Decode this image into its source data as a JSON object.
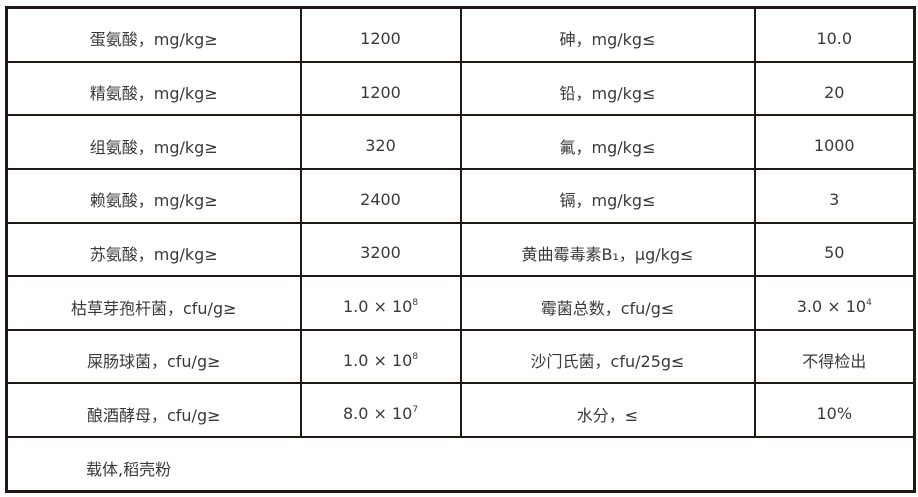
{
  "rows": [
    {
      "name1": "蛋氨酸，mg/kg≥",
      "val1": {
        "text": "1200"
      },
      "name2": "砷，mg/kg≤",
      "val2": {
        "text": "10.0"
      }
    },
    {
      "name1": "精氨酸，mg/kg≥",
      "val1": {
        "text": "1200"
      },
      "name2": "铅，mg/kg≤",
      "val2": {
        "text": "20"
      }
    },
    {
      "name1": "组氨酸，mg/kg≥",
      "val1": {
        "text": "320"
      },
      "name2": "氟，mg/kg≤",
      "val2": {
        "text": "1000"
      }
    },
    {
      "name1": "赖氨酸，mg/kg≥",
      "val1": {
        "text": "2400"
      },
      "name2": "镉，mg/kg≤",
      "val2": {
        "text": "3"
      }
    },
    {
      "name1": "苏氨酸，mg/kg≥",
      "val1": {
        "text": "3200"
      },
      "name2": "黄曲霉毒素B₁，μg/kg≤",
      "val2": {
        "text": "50"
      }
    },
    {
      "name1": "枯草芽孢杆菌，cfu/g≥",
      "val1": {
        "text": "1.0 × 10",
        "exp": "8"
      },
      "name2": "霉菌总数，cfu/g≤",
      "val2": {
        "text": "3.0 × 10",
        "exp": "4"
      }
    },
    {
      "name1": "屎肠球菌，cfu/g≥",
      "val1": {
        "text": "1.0 × 10",
        "exp": "8"
      },
      "name2": "沙门氏菌，cfu/25g≤",
      "val2": {
        "text": "不得检出"
      }
    },
    {
      "name1": "酿酒酵母，cfu/g≥",
      "val1": {
        "text": "8.0 × 10",
        "exp": "7"
      },
      "name2": "水分，≤",
      "val2": {
        "text": "10%"
      }
    }
  ],
  "note": "载体,稻壳粉"
}
